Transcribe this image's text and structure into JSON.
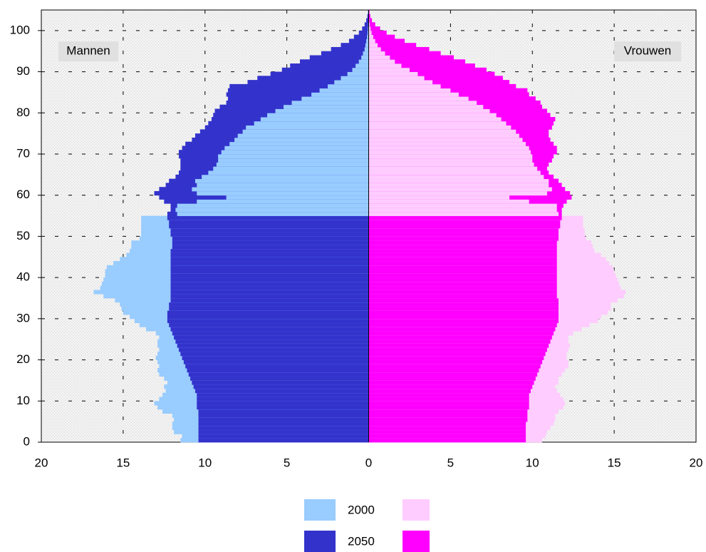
{
  "chart_data": {
    "type": "population-pyramid",
    "left_label": "Mannen",
    "right_label": "Vrouwen",
    "xlim": [
      -20,
      20
    ],
    "xticks": [
      {
        "value": -20,
        "label": "20"
      },
      {
        "value": -15,
        "label": "15"
      },
      {
        "value": -10,
        "label": "10"
      },
      {
        "value": -5,
        "label": "5"
      },
      0,
      5,
      10,
      15,
      20
    ],
    "ylim": [
      0,
      105
    ],
    "yticks": [
      0,
      10,
      20,
      30,
      40,
      50,
      60,
      70,
      80,
      90,
      100
    ],
    "grid": true,
    "series": [
      {
        "name": "2000",
        "color_men": "#99ccff",
        "color_women": "#ffccff",
        "men": [
          11.5,
          11.4,
          11.9,
          12.0,
          12.0,
          11.9,
          12.0,
          12.6,
          12.9,
          13.1,
          12.8,
          12.6,
          12.4,
          12.5,
          12.3,
          12.5,
          12.8,
          12.9,
          12.8,
          12.9,
          13.0,
          12.9,
          12.8,
          12.9,
          12.9,
          12.8,
          13.0,
          13.6,
          14.0,
          14.3,
          14.6,
          15.0,
          15.1,
          15.2,
          15.5,
          16.2,
          16.8,
          16.4,
          16.3,
          16.2,
          16.1,
          16.1,
          16.0,
          15.6,
          15.2,
          14.8,
          14.6,
          14.5,
          14.5,
          14.0,
          13.9,
          13.9,
          13.9,
          13.9,
          13.9,
          11.7,
          11.8,
          11.7,
          10.5,
          8.7,
          10.5,
          10.8,
          10.5,
          10.6,
          10.2,
          9.8,
          9.5,
          9.3,
          9.2,
          9.2,
          9.0,
          8.8,
          8.5,
          8.2,
          8.0,
          7.7,
          7.5,
          7.0,
          6.6,
          6.2,
          5.7,
          5.2,
          4.7,
          4.1,
          3.5,
          3.0,
          2.5,
          2.1,
          1.7,
          1.3,
          1.0,
          0.8,
          0.6,
          0.45,
          0.35,
          0.25,
          0.2,
          0.15,
          0.1,
          0.07,
          0.05,
          0.03,
          0.02,
          0.01,
          0.01
        ],
        "women": [
          10.6,
          10.8,
          10.9,
          11.1,
          11.3,
          11.4,
          11.4,
          11.6,
          11.9,
          12.0,
          11.9,
          11.7,
          11.5,
          11.4,
          11.6,
          11.6,
          11.8,
          12.0,
          12.2,
          12.2,
          12.1,
          12.1,
          12.2,
          12.3,
          12.2,
          12.2,
          12.5,
          13.0,
          13.5,
          14.0,
          14.2,
          14.6,
          14.8,
          14.8,
          15.2,
          15.6,
          15.7,
          15.4,
          15.3,
          15.2,
          15.1,
          15.0,
          14.9,
          14.7,
          14.5,
          14.2,
          13.8,
          13.7,
          13.6,
          13.3,
          13.2,
          13.2,
          13.1,
          13.1,
          13.1,
          11.6,
          11.5,
          11.5,
          9.8,
          8.6,
          10.9,
          11.2,
          11.0,
          11.0,
          10.7,
          10.5,
          10.3,
          10.1,
          10.0,
          10.0,
          9.9,
          9.8,
          9.6,
          9.4,
          9.2,
          9.0,
          8.7,
          8.4,
          8.1,
          7.8,
          7.4,
          7.0,
          6.6,
          6.1,
          5.5,
          5.0,
          4.4,
          3.9,
          3.4,
          3.0,
          2.5,
          2.0,
          1.6,
          1.3,
          1.0,
          0.75,
          0.55,
          0.4,
          0.28,
          0.18,
          0.12,
          0.07,
          0.04,
          0.02,
          0.01
        ]
      },
      {
        "name": "2050",
        "color_men": "#3333cc",
        "color_women": "#ff00ff",
        "men": [
          10.4,
          10.4,
          10.4,
          10.4,
          10.4,
          10.4,
          10.4,
          10.4,
          10.5,
          10.5,
          10.5,
          10.5,
          10.6,
          10.7,
          10.8,
          10.9,
          11.0,
          11.1,
          11.2,
          11.3,
          11.4,
          11.5,
          11.6,
          11.7,
          11.8,
          11.9,
          12.0,
          12.1,
          12.2,
          12.3,
          12.3,
          12.3,
          12.2,
          12.2,
          12.1,
          12.1,
          12.1,
          12.1,
          12.1,
          12.1,
          12.1,
          12.1,
          12.1,
          12.1,
          12.1,
          12.1,
          12.1,
          12.0,
          12.0,
          12.0,
          12.1,
          12.1,
          12.2,
          12.2,
          12.3,
          12.3,
          12.1,
          12.1,
          12.5,
          12.8,
          13.1,
          12.8,
          12.4,
          12.2,
          11.8,
          11.6,
          11.5,
          11.5,
          11.5,
          11.6,
          11.6,
          11.4,
          11.2,
          10.8,
          10.6,
          10.3,
          10.0,
          9.8,
          9.6,
          9.5,
          9.4,
          9.1,
          8.7,
          8.6,
          8.7,
          8.6,
          8.5,
          7.4,
          6.8,
          6.0,
          5.3,
          4.8,
          4.2,
          3.6,
          2.9,
          2.3,
          1.7,
          1.2,
          0.9,
          0.6,
          0.4,
          0.25,
          0.15,
          0.08,
          0.04
        ],
        "women": [
          9.6,
          9.6,
          9.6,
          9.6,
          9.6,
          9.7,
          9.7,
          9.7,
          9.8,
          9.8,
          9.8,
          9.8,
          9.9,
          10.0,
          10.1,
          10.2,
          10.3,
          10.4,
          10.5,
          10.6,
          10.7,
          10.8,
          10.9,
          11.0,
          11.1,
          11.2,
          11.3,
          11.4,
          11.5,
          11.6,
          11.6,
          11.6,
          11.6,
          11.6,
          11.6,
          11.5,
          11.5,
          11.5,
          11.5,
          11.5,
          11.5,
          11.5,
          11.5,
          11.5,
          11.5,
          11.5,
          11.5,
          11.5,
          11.5,
          11.6,
          11.6,
          11.6,
          11.7,
          11.7,
          11.8,
          11.8,
          11.8,
          11.9,
          12.1,
          12.4,
          12.3,
          12.0,
          11.8,
          11.6,
          11.3,
          11.0,
          10.9,
          11.0,
          11.2,
          11.3,
          11.5,
          11.5,
          11.3,
          11.1,
          11.0,
          11.0,
          11.2,
          11.3,
          11.4,
          11.1,
          10.9,
          10.6,
          10.5,
          10.2,
          9.8,
          9.7,
          9.0,
          8.6,
          8.2,
          7.7,
          7.2,
          6.5,
          5.9,
          5.2,
          4.4,
          3.7,
          2.9,
          2.2,
          1.6,
          1.1,
          0.7,
          0.4,
          0.2,
          0.1,
          0.05
        ]
      }
    ]
  }
}
